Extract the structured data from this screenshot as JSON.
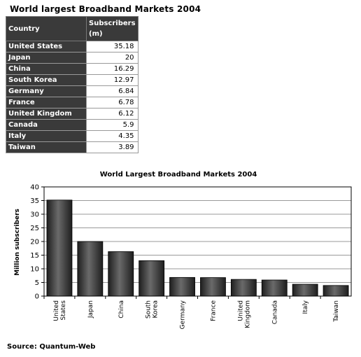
{
  "page": {
    "title": "World largest Broadband Markets  2004",
    "source": "Source: Quantum-Web"
  },
  "table": {
    "headers": [
      "Country",
      "Subscribers (m)"
    ],
    "rows": [
      [
        "United States",
        "35.18"
      ],
      [
        "Japan",
        "20"
      ],
      [
        "China",
        "16.29"
      ],
      [
        "South Korea",
        "12.97"
      ],
      [
        "Germany",
        "6.84"
      ],
      [
        "France",
        "6.78"
      ],
      [
        "United Kingdom",
        "6.12"
      ],
      [
        "Canada",
        "5.9"
      ],
      [
        "Italy",
        "4.35"
      ],
      [
        "Taiwan",
        "3.89"
      ]
    ]
  },
  "chart_data": {
    "type": "bar",
    "title": "World Largest Broadband Markets 2004",
    "xlabel": "",
    "ylabel": "Million subscribers",
    "ylim": [
      0,
      40
    ],
    "yticks": [
      0,
      5,
      10,
      15,
      20,
      25,
      30,
      35,
      40
    ],
    "grid": true,
    "categories": [
      "United States",
      "Japan",
      "China",
      "South Korea",
      "Germany",
      "France",
      "United Kingdom",
      "Canada",
      "Italy",
      "Taiwan"
    ],
    "category_lines": [
      [
        "United",
        "States"
      ],
      [
        "Japan"
      ],
      [
        "China"
      ],
      [
        "South",
        "Korea"
      ],
      [
        "Germany"
      ],
      [
        "France"
      ],
      [
        "United",
        "Kingdom"
      ],
      [
        "Canada"
      ],
      [
        "Italy"
      ],
      [
        "Taiwan"
      ]
    ],
    "values": [
      35.18,
      20,
      16.29,
      12.97,
      6.84,
      6.78,
      6.12,
      5.9,
      4.35,
      3.89
    ],
    "colors": {
      "bar": "#1e1e1e",
      "bar_highlight": "#6a6a6a",
      "grid": "#9a9a9a"
    }
  }
}
